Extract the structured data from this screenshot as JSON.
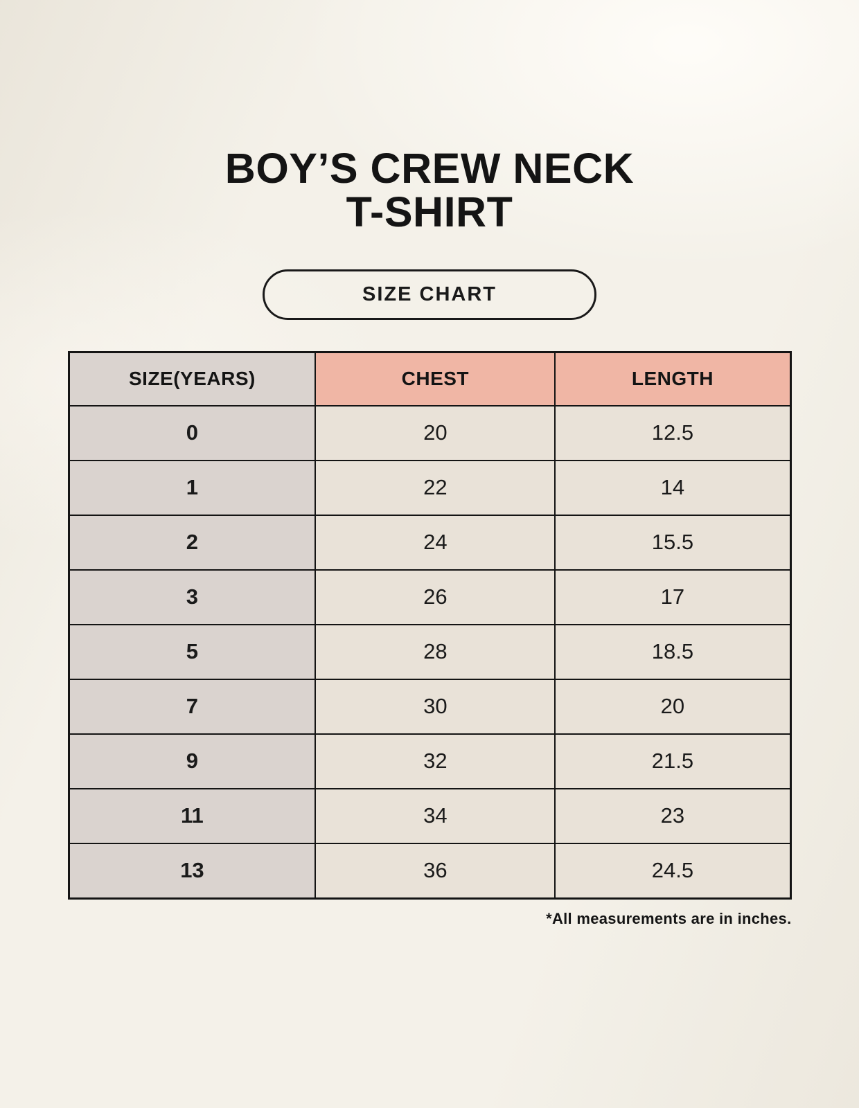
{
  "page": {
    "title_line1": "BOY’S CREW NECK",
    "title_line2": "T-SHIRT",
    "badge_label": "SIZE CHART",
    "footnote": "*All measurements are in inches."
  },
  "colors": {
    "background": "#f4f1e9",
    "header_accent": "#f0b6a5",
    "size_column_bg": "#dad3cf",
    "cell_bg": "#e9e2d8",
    "border": "#141414",
    "text": "#1a1a1a"
  },
  "chart_data": {
    "type": "table",
    "title": "BOY’S CREW NECK T-SHIRT",
    "subtitle": "SIZE CHART",
    "columns": [
      "SIZE(YEARS)",
      "CHEST",
      "LENGTH"
    ],
    "rows": [
      [
        "0",
        "20",
        "12.5"
      ],
      [
        "1",
        "22",
        "14"
      ],
      [
        "2",
        "24",
        "15.5"
      ],
      [
        "3",
        "26",
        "17"
      ],
      [
        "5",
        "28",
        "18.5"
      ],
      [
        "7",
        "30",
        "20"
      ],
      [
        "9",
        "32",
        "21.5"
      ],
      [
        "11",
        "34",
        "23"
      ],
      [
        "13",
        "36",
        "24.5"
      ]
    ],
    "units_note": "*All measurements are in inches."
  }
}
